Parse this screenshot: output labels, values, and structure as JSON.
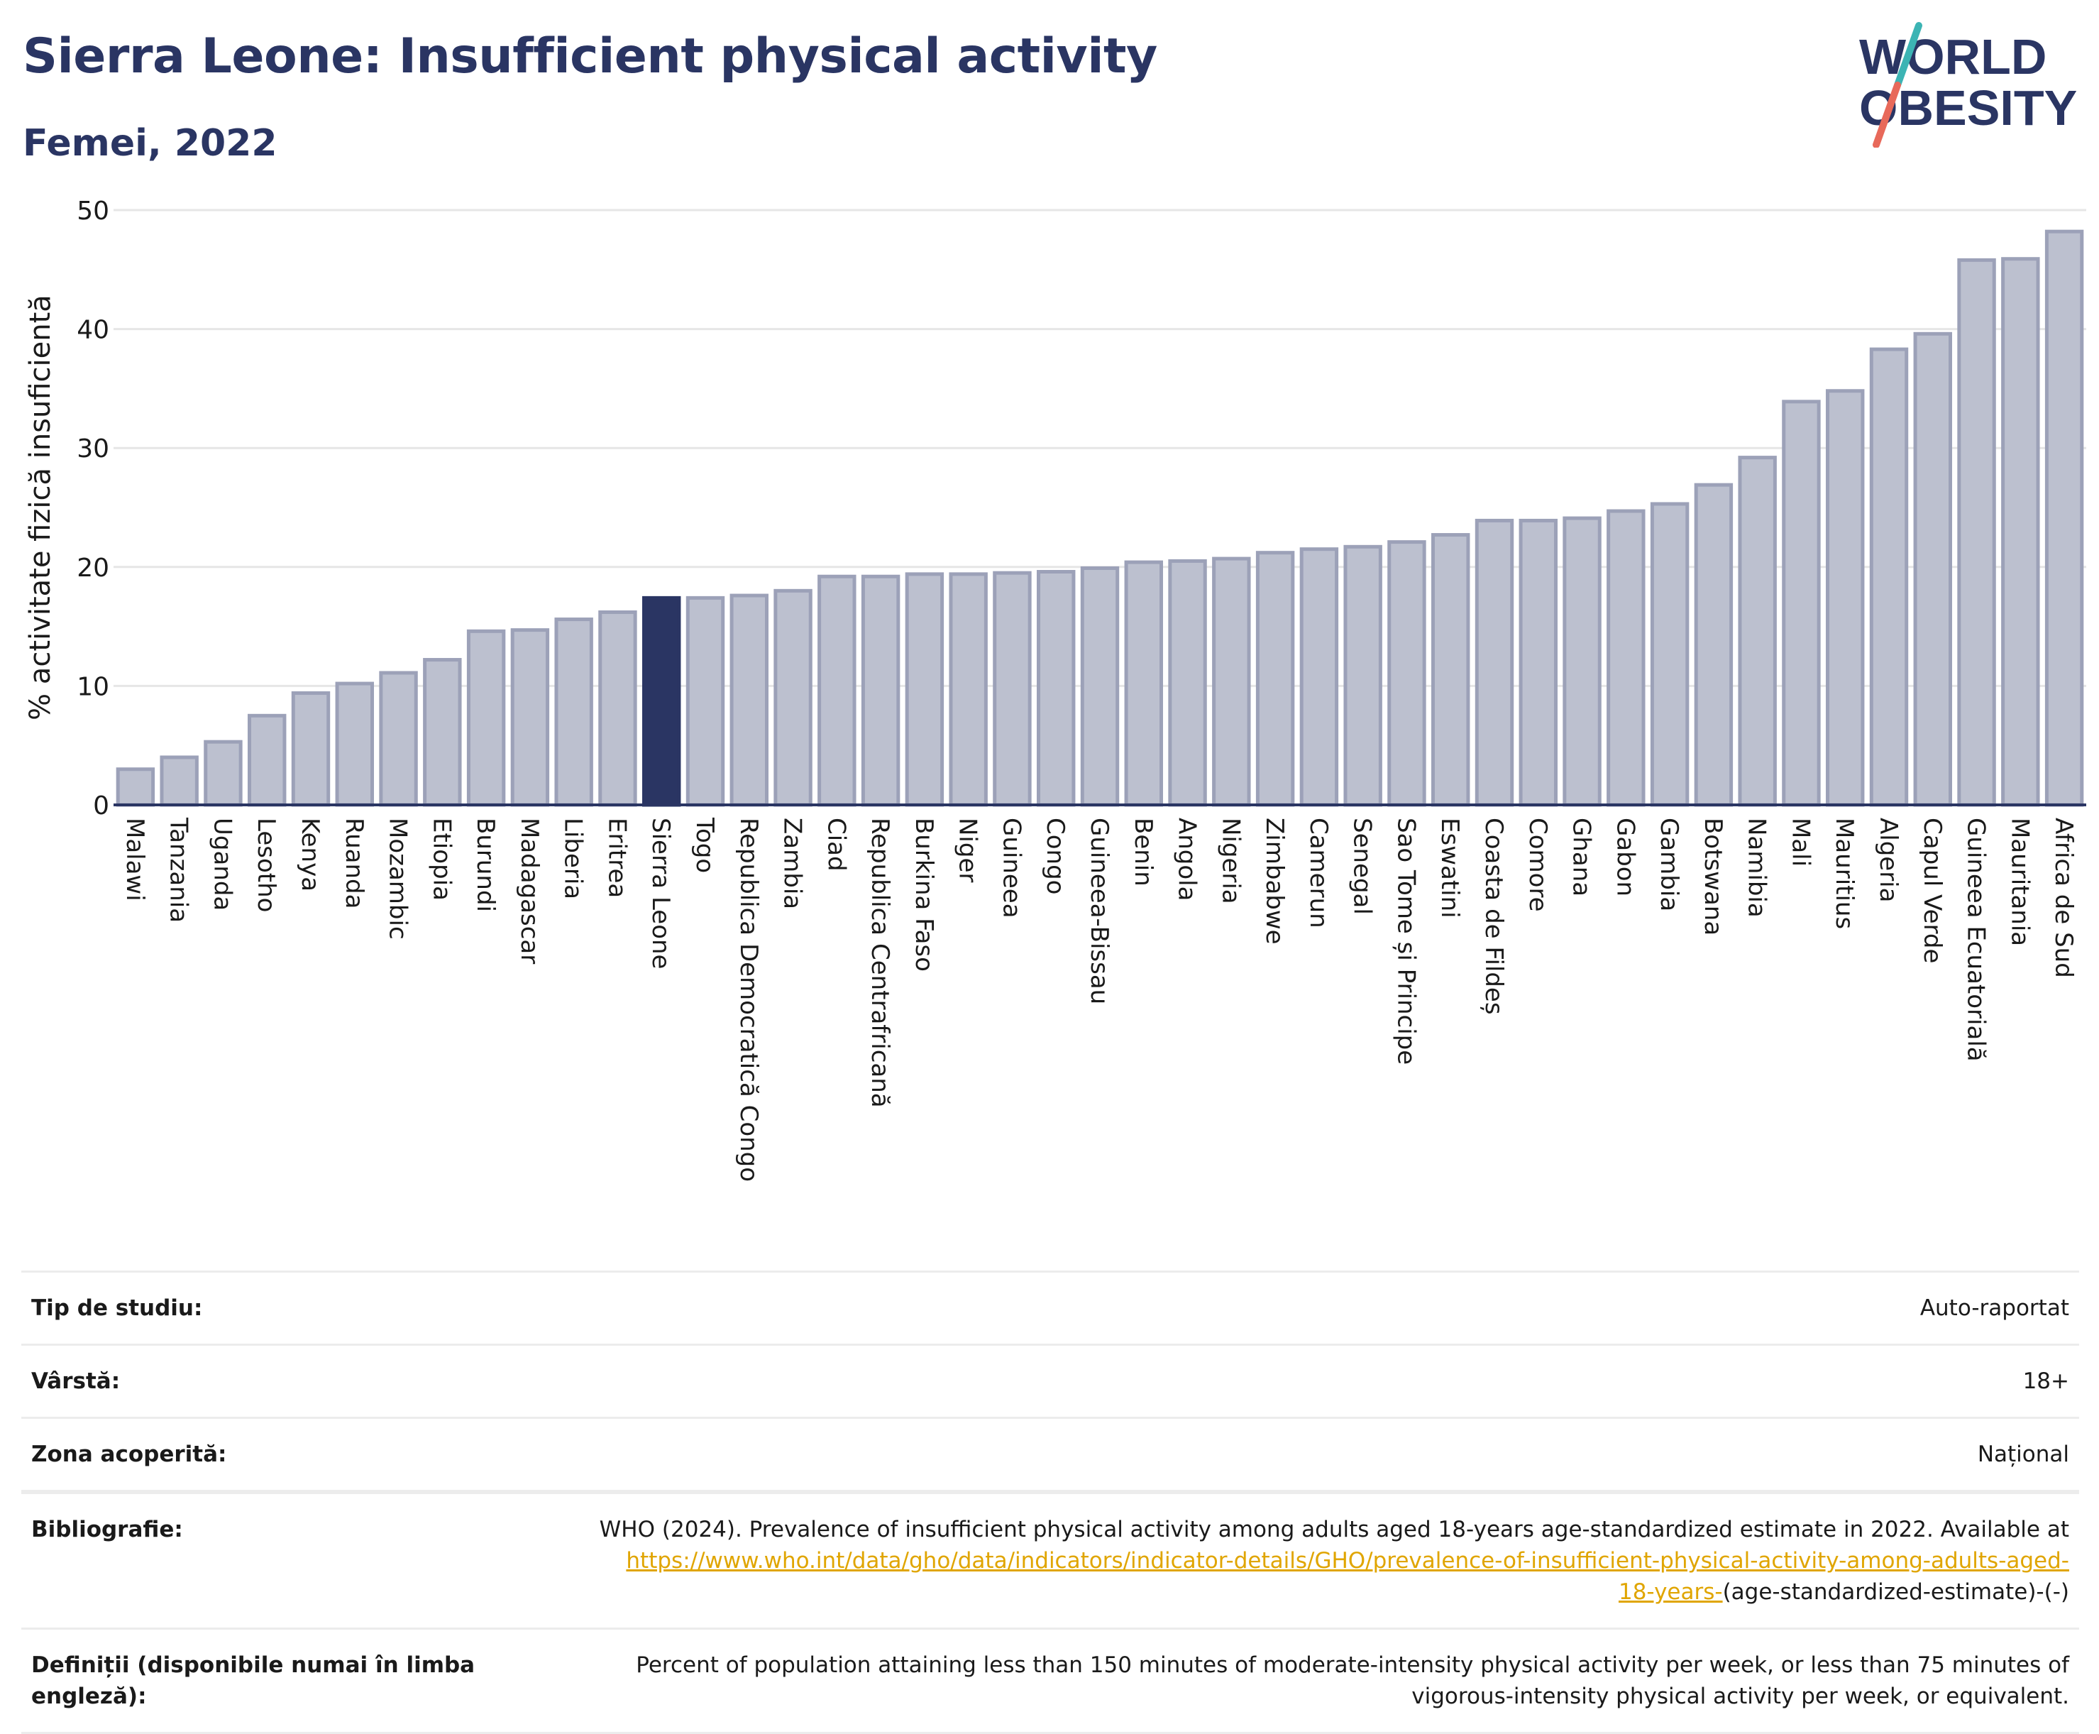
{
  "header": {
    "title": "Sierra Leone: Insufficient physical activity",
    "subtitle": "Femei, 2022"
  },
  "logo": {
    "line1": "WORLD",
    "line2": "OBESITY",
    "text_color": "#2a3563",
    "slash_colors": [
      "#3cb4b4",
      "#e8695a"
    ]
  },
  "colors": {
    "bar_default": "#bcc0cf",
    "bar_default_stroke": "#9ca1b8",
    "bar_highlight": "#2a3563",
    "grid": "#e6e6e6",
    "axis": "#2a3563"
  },
  "chart_data": {
    "type": "bar",
    "ylabel": "% activitate fizică insuficientă",
    "xlabel": "",
    "ylim": [
      0,
      50
    ],
    "yticks": [
      0,
      10,
      20,
      30,
      40,
      50
    ],
    "grid": true,
    "highlight": "Sierra Leone",
    "categories": [
      "Malawi",
      "Tanzania",
      "Uganda",
      "Lesotho",
      "Kenya",
      "Ruanda",
      "Mozambic",
      "Etiopia",
      "Burundi",
      "Madagascar",
      "Liberia",
      "Eritrea",
      "Sierra Leone",
      "Togo",
      "Republica Democratică Congo",
      "Zambia",
      "Ciad",
      "Republica Centrafricană",
      "Burkina Faso",
      "Niger",
      "Guineea",
      "Congo",
      "Guineea-Bissau",
      "Benin",
      "Angola",
      "Nigeria",
      "Zimbabwe",
      "Camerun",
      "Senegal",
      "Sao Tome și Principe",
      "Eswatini",
      "Coasta de Fildeș",
      "Comore",
      "Ghana",
      "Gabon",
      "Gambia",
      "Botswana",
      "Namibia",
      "Mali",
      "Mauritius",
      "Algeria",
      "Capul Verde",
      "Guineea Ecuatorială",
      "Mauritania",
      "Africa de Sud"
    ],
    "values": [
      3.0,
      4.0,
      5.3,
      7.5,
      9.4,
      10.2,
      11.1,
      12.2,
      14.6,
      14.7,
      15.6,
      16.2,
      17.4,
      17.4,
      17.6,
      18.0,
      19.2,
      19.2,
      19.4,
      19.4,
      19.5,
      19.6,
      19.9,
      20.4,
      20.5,
      20.7,
      21.2,
      21.5,
      21.7,
      22.1,
      22.7,
      23.9,
      23.9,
      24.1,
      24.7,
      25.3,
      26.9,
      29.2,
      33.9,
      34.8,
      38.3,
      39.6,
      45.8,
      45.9,
      48.2
    ]
  },
  "info": {
    "rows": [
      {
        "label": "Tip de studiu:",
        "value": "Auto-raportat"
      },
      {
        "label": "Vârstă:",
        "value": "18+"
      },
      {
        "label": "Zona acoperită:",
        "value": "Național"
      }
    ],
    "bibliography_label": "Bibliografie:",
    "bibliography_text": "WHO (2024). Prevalence of insufficient physical activity among adults aged 18-years age-standardized estimate in 2022. Available at",
    "bibliography_link_1": "https://www.who.int/data/gho/data/indicators/indicator-details/GHO/prevalence-of-insufficient-physical-activity-among-adults-aged-",
    "bibliography_link_2": "18-years-",
    "bibliography_suffix": "(age-standardized-estimate)-(-)",
    "definitions_label": "Definiții (disponibile numai în limba engleză):",
    "definitions_value": "Percent of population attaining less than 150 minutes of moderate-intensity physical activity per week, or less than 75 minutes of vigorous-intensity physical activity per week, or equivalent."
  }
}
